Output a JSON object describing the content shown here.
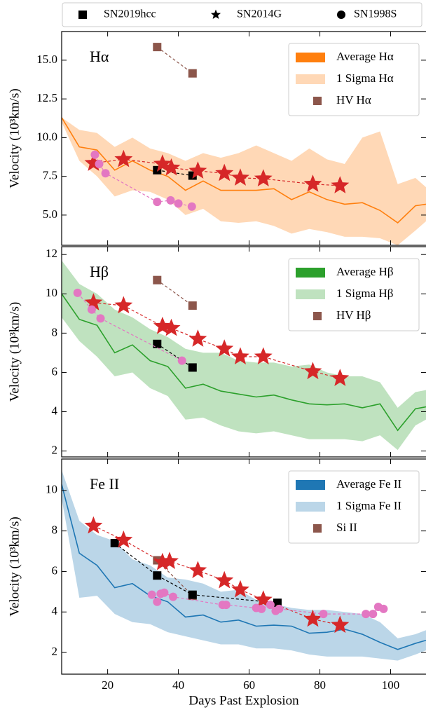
{
  "legend": {
    "entries": [
      {
        "name": "SN2019hcc",
        "marker": "square",
        "color": "#000000"
      },
      {
        "name": "SN2014G",
        "marker": "star",
        "color": "#000000"
      },
      {
        "name": "SN1998S",
        "marker": "circle",
        "color": "#000000"
      }
    ]
  },
  "chart_data": [
    {
      "type": "line",
      "label": "Hα",
      "ylabel": "Velocity (10³km/s)",
      "legend": "upper right",
      "xlim": [
        7,
        110
      ],
      "xticks": [
        20,
        40,
        60,
        80,
        100
      ],
      "ylim": [
        3.05,
        16.85
      ],
      "yticks": [
        {
          "value": 5,
          "label": "5.0"
        },
        {
          "value": 7.5,
          "label": "7.5"
        },
        {
          "value": 10,
          "label": "10.0"
        },
        {
          "value": 12.5,
          "label": "12.5"
        },
        {
          "value": 15,
          "label": "15.0"
        }
      ],
      "x": [
        7,
        12,
        17,
        22,
        27,
        32,
        37,
        42,
        47,
        52,
        57,
        62,
        67,
        72,
        77,
        82,
        87,
        92,
        97,
        102,
        107,
        110
      ],
      "series": [
        {
          "name": "Average Hα",
          "color": "#ff7f0e",
          "values": [
            11.3,
            9.4,
            9.2,
            7.9,
            8.5,
            7.9,
            7.5,
            6.6,
            7.2,
            6.6,
            6.6,
            6.6,
            6.7,
            6.0,
            6.5,
            6.0,
            5.7,
            5.8,
            5.3,
            4.5,
            5.6,
            5.7
          ]
        },
        {
          "name": "1 Sigma Hα",
          "kind": "band",
          "color": "#ff7f0e",
          "alpha": 0.3,
          "upper": [
            11.3,
            10.5,
            10.3,
            9.4,
            10.0,
            9.3,
            9.0,
            8.5,
            9.0,
            8.7,
            9.0,
            9.5,
            9.0,
            8.5,
            9.3,
            8.6,
            8.3,
            10.0,
            10.4,
            7.0,
            7.4,
            6.8
          ],
          "lower": [
            11.0,
            8.5,
            7.5,
            6.2,
            6.6,
            6.5,
            6.0,
            5.0,
            5.4,
            4.6,
            4.5,
            4.6,
            4.3,
            3.8,
            4.1,
            3.9,
            3.6,
            3.6,
            3.5,
            3.05,
            4.0,
            4.6
          ]
        },
        {
          "name": "HV Hα",
          "marker": "square",
          "color": "#8c564b",
          "x": [
            34,
            44
          ],
          "values": [
            15.85,
            14.15
          ]
        },
        {
          "marker": "square",
          "color": "#000000",
          "x": [
            34,
            44
          ],
          "values": [
            7.9,
            7.55
          ]
        },
        {
          "marker": "star",
          "color": "#d62728",
          "x": [
            16,
            24.5,
            35.5,
            38,
            45.5,
            53,
            57.5,
            64,
            78,
            85.7
          ],
          "values": [
            8.35,
            8.6,
            8.3,
            8.05,
            7.85,
            7.7,
            7.4,
            7.35,
            7.0,
            6.9
          ]
        },
        {
          "marker": "circle",
          "color": "#e377c2",
          "x": [
            16.4,
            17.6,
            19.4,
            34,
            37.8,
            40,
            43.8
          ],
          "values": [
            8.9,
            8.3,
            7.7,
            5.85,
            5.95,
            5.75,
            5.55
          ]
        }
      ]
    },
    {
      "type": "line",
      "label": "Hβ",
      "ylabel": "Velocity (10³km/s)",
      "legend": "upper right",
      "xlim": [
        7,
        110
      ],
      "xticks": [
        20,
        40,
        60,
        80,
        100
      ],
      "ylim": [
        1.7,
        12.4
      ],
      "yticks": [
        2,
        4,
        6,
        8,
        10,
        12
      ],
      "x": [
        7,
        12,
        17,
        22,
        27,
        32,
        37,
        42,
        47,
        52,
        57,
        62,
        67,
        72,
        77,
        82,
        87,
        92,
        97,
        102,
        107,
        110
      ],
      "series": [
        {
          "name": "Average Hβ",
          "color": "#2ca02c",
          "values": [
            10.0,
            8.7,
            8.4,
            7.0,
            7.4,
            6.6,
            6.3,
            5.2,
            5.4,
            5.05,
            4.9,
            4.75,
            4.85,
            4.6,
            4.4,
            4.35,
            4.4,
            4.2,
            4.4,
            3.05,
            4.15,
            4.25
          ]
        },
        {
          "name": "1 Sigma Hβ",
          "kind": "band",
          "color": "#2ca02c",
          "alpha": 0.3,
          "upper": [
            11.7,
            10.5,
            10.0,
            9.2,
            8.8,
            8.2,
            7.8,
            7.2,
            7.0,
            7.0,
            6.6,
            6.5,
            6.5,
            6.3,
            6.4,
            6.0,
            5.8,
            5.8,
            5.5,
            4.2,
            5.0,
            5.1
          ],
          "lower": [
            8.8,
            7.6,
            6.8,
            5.8,
            6.0,
            5.2,
            4.8,
            3.6,
            3.7,
            3.3,
            3.0,
            2.9,
            3.0,
            2.8,
            2.6,
            2.6,
            2.6,
            2.5,
            2.8,
            2.05,
            3.3,
            3.6
          ]
        },
        {
          "name": "HV Hβ",
          "marker": "square",
          "color": "#8c564b",
          "x": [
            34,
            44
          ],
          "values": [
            10.7,
            9.4
          ]
        },
        {
          "marker": "square",
          "color": "#000000",
          "x": [
            34,
            44
          ],
          "values": [
            7.45,
            6.25
          ]
        },
        {
          "marker": "star",
          "color": "#d62728",
          "x": [
            16,
            24.5,
            35.5,
            38,
            45.5,
            53,
            57.5,
            64,
            78,
            85.7
          ],
          "values": [
            9.55,
            9.4,
            8.35,
            8.25,
            7.7,
            7.2,
            6.8,
            6.8,
            6.05,
            5.7
          ]
        },
        {
          "marker": "circle",
          "color": "#e377c2",
          "x": [
            11.5,
            15.5,
            18,
            41
          ],
          "values": [
            10.05,
            9.2,
            8.75,
            6.6
          ]
        }
      ]
    },
    {
      "type": "line",
      "label": "Fe II",
      "ylabel": "Velocity (10³km/s)",
      "xlabel": "Days Past Explosion",
      "legend": "upper right",
      "xlim": [
        7,
        110
      ],
      "xticks": [
        20,
        40,
        60,
        80,
        100
      ],
      "ylim": [
        0.93,
        11.55
      ],
      "yticks": [
        2,
        4,
        6,
        8,
        10
      ],
      "x": [
        7,
        12,
        17,
        22,
        27,
        32,
        37,
        42,
        47,
        52,
        57,
        62,
        67,
        72,
        77,
        82,
        87,
        92,
        97,
        102,
        107,
        110
      ],
      "series": [
        {
          "name": "Average Fe II",
          "color": "#1f77b4",
          "values": [
            10.3,
            6.9,
            6.3,
            5.2,
            5.4,
            4.8,
            4.5,
            3.75,
            3.85,
            3.5,
            3.6,
            3.3,
            3.35,
            3.3,
            2.95,
            3.0,
            3.15,
            2.9,
            2.5,
            2.15,
            2.45,
            2.6
          ]
        },
        {
          "name": "1 Sigma Fe II",
          "kind": "band",
          "color": "#1f77b4",
          "alpha": 0.3,
          "upper": [
            11.0,
            8.5,
            7.8,
            7.5,
            6.6,
            6.3,
            5.7,
            5.6,
            5.4,
            5.0,
            5.1,
            4.6,
            4.4,
            4.2,
            4.1,
            4.1,
            4.0,
            3.9,
            3.5,
            2.7,
            2.9,
            3.1
          ],
          "lower": [
            9.6,
            4.7,
            4.8,
            3.9,
            3.5,
            3.4,
            3.0,
            2.8,
            2.6,
            2.4,
            2.4,
            2.2,
            2.2,
            2.1,
            1.9,
            1.8,
            1.8,
            1.8,
            1.7,
            1.6,
            1.9,
            2.1
          ]
        },
        {
          "name": "Si II",
          "marker": "square",
          "color": "#8c564b",
          "x": [
            34,
            44
          ],
          "values": [
            6.55,
            4.8
          ]
        },
        {
          "marker": "square",
          "color": "#000000",
          "x": [
            22,
            34,
            44,
            68
          ],
          "values": [
            7.4,
            5.8,
            4.85,
            4.45
          ]
        },
        {
          "marker": "star",
          "color": "#d62728",
          "x": [
            16,
            24.5,
            35.5,
            37.5,
            45.5,
            53,
            57.5,
            64,
            78,
            85.7
          ],
          "values": [
            8.25,
            7.55,
            6.45,
            6.5,
            6.05,
            5.55,
            5.1,
            4.6,
            3.65,
            3.35
          ]
        },
        {
          "marker": "circle",
          "color": "#e377c2",
          "x": [
            32.5,
            34,
            35,
            36,
            38.5,
            52.5,
            53.5,
            62,
            63.5,
            66,
            67.5,
            68.5,
            81,
            93,
            95,
            96.5,
            98
          ],
          "values": [
            4.85,
            4.5,
            4.9,
            4.95,
            4.75,
            4.35,
            4.35,
            4.2,
            4.15,
            4.35,
            4.05,
            4.15,
            3.9,
            3.9,
            3.9,
            4.25,
            4.15
          ]
        }
      ]
    }
  ]
}
